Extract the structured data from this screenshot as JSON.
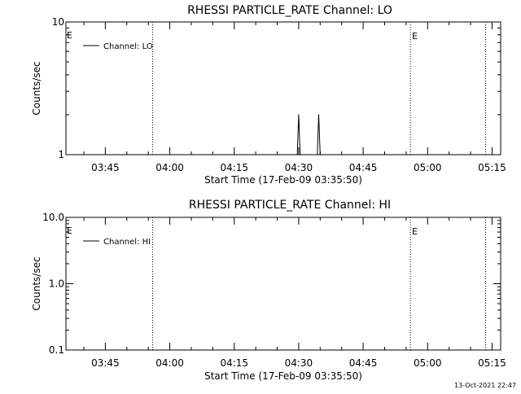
{
  "footer_timestamp": "13-Oct-2021 22:47",
  "chart_data": [
    {
      "type": "line",
      "title": "RHESSI PARTICLE_RATE Channel: LO",
      "xlabel": "Start Time (17-Feb-09 03:35:50)",
      "ylabel": "Counts/sec",
      "yscale": "log",
      "ylim": [
        1,
        10
      ],
      "ytick_labels": [
        "10",
        "1"
      ],
      "xlim": [
        "03:35:50",
        "05:17:00"
      ],
      "xtick_labels": [
        "03:45",
        "04:00",
        "04:15",
        "04:30",
        "04:45",
        "05:00",
        "05:15"
      ],
      "legend": {
        "placement": "top-left",
        "entries": [
          "Channel: LO"
        ]
      },
      "event_markers": [
        {
          "time": "03:56:00",
          "label": ""
        },
        {
          "time": "04:56:00",
          "label": "E"
        },
        {
          "time": "05:13:30",
          "label": ""
        }
      ],
      "corner_marker": {
        "label": "E",
        "placement": "top-left"
      },
      "series": [
        {
          "name": "Channel: LO",
          "points": [
            {
              "t": "04:29:40",
              "v": 1
            },
            {
              "t": "04:30:00",
              "v": 2
            },
            {
              "t": "04:30:20",
              "v": 1
            },
            {
              "t": "04:34:20",
              "v": 1
            },
            {
              "t": "04:34:40",
              "v": 2
            },
            {
              "t": "04:35:00",
              "v": 1
            }
          ]
        }
      ]
    },
    {
      "type": "line",
      "title": "RHESSI PARTICLE_RATE Channel: HI",
      "xlabel": "Start Time (17-Feb-09 03:35:50)",
      "ylabel": "Counts/sec",
      "yscale": "log",
      "ylim": [
        0.1,
        10
      ],
      "ytick_labels": [
        "10.0",
        "1.0",
        "0.1"
      ],
      "xlim": [
        "03:35:50",
        "05:17:00"
      ],
      "xtick_labels": [
        "03:45",
        "04:00",
        "04:15",
        "04:30",
        "04:45",
        "05:00",
        "05:15"
      ],
      "legend": {
        "placement": "top-left",
        "entries": [
          "Channel: HI"
        ]
      },
      "event_markers": [
        {
          "time": "03:56:00",
          "label": ""
        },
        {
          "time": "04:56:00",
          "label": "E"
        },
        {
          "time": "05:13:30",
          "label": ""
        }
      ],
      "corner_marker": {
        "label": "E",
        "placement": "top-left"
      },
      "series": [
        {
          "name": "Channel: HI",
          "points": []
        }
      ]
    }
  ]
}
